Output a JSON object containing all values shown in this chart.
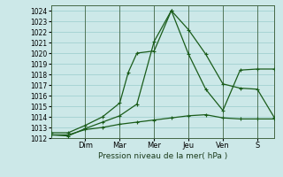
{
  "xlabel": "Pression niveau de la mer( hPa )",
  "bg_color": "#cce8e8",
  "grid_color": "#99cccc",
  "line_color": "#1a5c1a",
  "x_tick_positions": [
    2,
    4,
    6,
    8,
    10,
    12
  ],
  "x_tick_labels": [
    "Dim",
    "Mar",
    "Mer",
    "Jeu",
    "Ven",
    "S"
  ],
  "ylim": [
    1012,
    1024.5
  ],
  "yticks": [
    1012,
    1013,
    1014,
    1015,
    1016,
    1017,
    1018,
    1019,
    1020,
    1021,
    1022,
    1023,
    1024
  ],
  "xlim": [
    0,
    13
  ],
  "line1_x": [
    0.0,
    1.0,
    2.0,
    3.0,
    4.0,
    4.5,
    5.0,
    6.0,
    7.0,
    8.0,
    9.0,
    10.0,
    11.0,
    12.0,
    13.0
  ],
  "line1_y": [
    1012.5,
    1012.5,
    1013.2,
    1014.0,
    1015.3,
    1018.2,
    1020.0,
    1020.2,
    1024.0,
    1022.2,
    1019.9,
    1017.1,
    1016.7,
    1016.6,
    1013.9
  ],
  "line2_x": [
    0.0,
    1.0,
    2.0,
    3.0,
    4.0,
    5.0,
    6.0,
    7.0,
    8.0,
    9.0,
    10.0,
    11.0,
    12.0,
    13.0
  ],
  "line2_y": [
    1012.3,
    1012.2,
    1012.9,
    1013.5,
    1014.1,
    1015.2,
    1021.1,
    1024.0,
    1019.9,
    1016.6,
    1014.6,
    1018.4,
    1018.5,
    1018.5
  ],
  "line3_x": [
    0.0,
    1.0,
    2.0,
    3.0,
    4.0,
    5.0,
    6.0,
    7.0,
    8.0,
    9.0,
    10.0,
    11.0,
    12.0,
    13.0
  ],
  "line3_y": [
    1012.3,
    1012.3,
    1012.8,
    1013.0,
    1013.3,
    1013.5,
    1013.7,
    1013.9,
    1014.1,
    1014.2,
    1013.9,
    1013.8,
    1013.8,
    1013.8
  ],
  "vline_color": "#446644",
  "spine_color": "#446644",
  "xlabel_fontsize": 6.5,
  "ytick_fontsize": 5.5,
  "xtick_fontsize": 6.0,
  "linewidth": 0.9,
  "markersize": 3.0
}
